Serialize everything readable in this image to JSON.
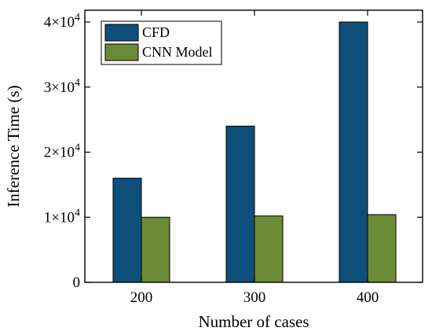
{
  "chart_data": {
    "type": "bar",
    "xlabel": "Number of cases",
    "ylabel": "Inference Time (s)",
    "categories": [
      "200",
      "300",
      "400"
    ],
    "series": [
      {
        "name": "CFD",
        "values": [
          16000,
          24000,
          40000
        ],
        "color": "#0e4f7a"
      },
      {
        "name": "CNN Model",
        "values": [
          10000,
          10200,
          10400
        ],
        "color": "#6b8b37"
      }
    ],
    "ylim": [
      0,
      40000
    ],
    "y_ticks": [
      {
        "value": 0,
        "mantissa": "0",
        "base": "",
        "exponent": ""
      },
      {
        "value": 10000,
        "mantissa": "1",
        "base": "×10",
        "exponent": "4"
      },
      {
        "value": 20000,
        "mantissa": "2",
        "base": "×10",
        "exponent": "4"
      },
      {
        "value": 30000,
        "mantissa": "3",
        "base": "×10",
        "exponent": "4"
      },
      {
        "value": 40000,
        "mantissa": "4",
        "base": "×10",
        "exponent": "4"
      }
    ],
    "grid": false,
    "legend_position": "top-left"
  }
}
